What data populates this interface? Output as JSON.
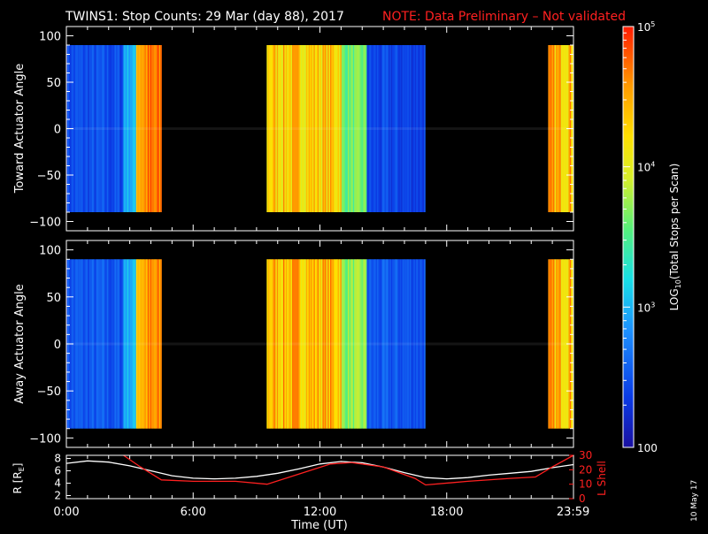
{
  "title": {
    "main": "TWINS1: Stop Counts: 29 Mar (day  88), 2017",
    "note": "NOTE: Data Preliminary – Not validated",
    "note_color": "#ff2020"
  },
  "date_stamp": "10 May 17",
  "colorbar": {
    "label": "LOG10(Total Stops per Scan)",
    "label_prefix": "LOG",
    "label_sub": "10",
    "label_suffix": "(Total Stops per Scan)",
    "ticks": [
      {
        "value": 100,
        "text": "100"
      },
      {
        "value": 1000,
        "text": "10",
        "sup": "3"
      },
      {
        "value": 10000,
        "text": "10",
        "sup": "4"
      },
      {
        "value": 100000,
        "text": "10",
        "sup": "5"
      }
    ],
    "range": [
      100,
      100000
    ],
    "scale": "log"
  },
  "panels": {
    "toward": {
      "ylabel": "Toward Actuator Angle"
    },
    "away": {
      "ylabel": "Away Actuator Angle"
    },
    "orbit": {
      "ylabel_left": "R [R",
      "ylabel_left_sub": "E",
      "ylabel_left_end": "]",
      "ylabel_right": "L Shell"
    }
  },
  "axes": {
    "xlabel": "Time (UT)",
    "xticks": [
      "0:00",
      "6:00",
      "12:00",
      "18:00",
      "23:59"
    ],
    "xtick_hours": [
      0,
      6,
      12,
      18,
      23.983
    ],
    "yticks_angle": [
      "100",
      "50",
      "0",
      "−50",
      "−100"
    ],
    "ytick_angle_values": [
      100,
      50,
      0,
      -50,
      -100
    ],
    "yticks_R": [
      "8",
      "6",
      "4",
      "2"
    ],
    "ytick_R_values": [
      8,
      6,
      4,
      2
    ],
    "yticks_L": [
      "30",
      "20",
      "10",
      "0"
    ],
    "ytick_L_values": [
      30,
      20,
      10,
      0
    ]
  },
  "chart_data": [
    {
      "type": "heatmap",
      "title": "Toward Actuator Angle",
      "xlabel": "Time (UT)",
      "ylabel": "Toward Actuator Angle",
      "xlim": [
        0,
        24
      ],
      "ylim": [
        -110,
        110
      ],
      "data_angle_range": [
        -90,
        90
      ],
      "data_intervals_hours": [
        [
          0,
          4.5
        ],
        [
          9.5,
          17.0
        ],
        [
          22.8,
          24
        ]
      ],
      "color_scale": "log",
      "color_range": [
        100,
        100000
      ],
      "approx_log10_counts_by_hour": [
        {
          "start": 0.0,
          "end": 2.7,
          "log10": 2.45
        },
        {
          "start": 2.7,
          "end": 3.3,
          "log10": 3.0
        },
        {
          "start": 3.3,
          "end": 4.5,
          "log10": 4.6
        },
        {
          "start": 9.5,
          "end": 13.0,
          "log10": 4.3
        },
        {
          "start": 13.0,
          "end": 14.2,
          "log10": 3.6
        },
        {
          "start": 14.2,
          "end": 17.0,
          "log10": 2.4
        },
        {
          "start": 22.8,
          "end": 24.0,
          "log10": 4.4
        }
      ]
    },
    {
      "type": "heatmap",
      "title": "Away Actuator Angle",
      "xlabel": "Time (UT)",
      "ylabel": "Away Actuator Angle",
      "xlim": [
        0,
        24
      ],
      "ylim": [
        -110,
        110
      ],
      "data_angle_range": [
        -90,
        90
      ],
      "data_intervals_hours": [
        [
          0,
          4.5
        ],
        [
          9.5,
          17.0
        ],
        [
          22.8,
          24
        ]
      ],
      "color_scale": "log",
      "color_range": [
        100,
        100000
      ],
      "approx_log10_counts_by_hour": [
        {
          "start": 0.0,
          "end": 2.7,
          "log10": 2.5
        },
        {
          "start": 2.7,
          "end": 3.3,
          "log10": 3.0
        },
        {
          "start": 3.3,
          "end": 4.5,
          "log10": 4.5
        },
        {
          "start": 9.5,
          "end": 13.0,
          "log10": 4.4
        },
        {
          "start": 13.0,
          "end": 14.2,
          "log10": 3.7
        },
        {
          "start": 14.2,
          "end": 17.0,
          "log10": 2.5
        },
        {
          "start": 22.8,
          "end": 24.0,
          "log10": 4.4
        }
      ]
    },
    {
      "type": "line",
      "title": "",
      "xlabel": "Time (UT)",
      "xlim": [
        0,
        24
      ],
      "ylim_left": [
        1.5,
        8.5
      ],
      "ylim_right": [
        0,
        30
      ],
      "series": [
        {
          "name": "R [RE]",
          "axis": "left",
          "color": "#ffffff",
          "x": [
            0,
            1,
            2,
            3,
            4,
            5,
            6,
            7,
            8,
            9,
            10,
            11,
            12,
            13,
            14,
            15,
            16,
            17,
            18,
            19,
            20,
            21,
            22,
            23,
            24
          ],
          "values": [
            7.2,
            7.6,
            7.4,
            6.8,
            6.0,
            5.2,
            4.8,
            4.7,
            4.8,
            5.1,
            5.6,
            6.3,
            7.1,
            7.5,
            7.3,
            6.6,
            5.7,
            4.9,
            4.7,
            4.9,
            5.3,
            5.6,
            5.9,
            6.5,
            7.0
          ]
        },
        {
          "name": "L Shell",
          "axis": "right",
          "color": "#ff2020",
          "x": [
            2.7,
            3.5,
            4.5,
            6.0,
            8.0,
            9.5,
            11.0,
            12.5,
            13.5,
            15.0,
            16.5,
            17.0,
            19.0,
            21.0,
            22.2,
            23.0,
            24.0
          ],
          "values": [
            31,
            22,
            13,
            12,
            12,
            10,
            17,
            24,
            25,
            22,
            14,
            9.5,
            12,
            14,
            15,
            22,
            31
          ]
        }
      ]
    }
  ]
}
